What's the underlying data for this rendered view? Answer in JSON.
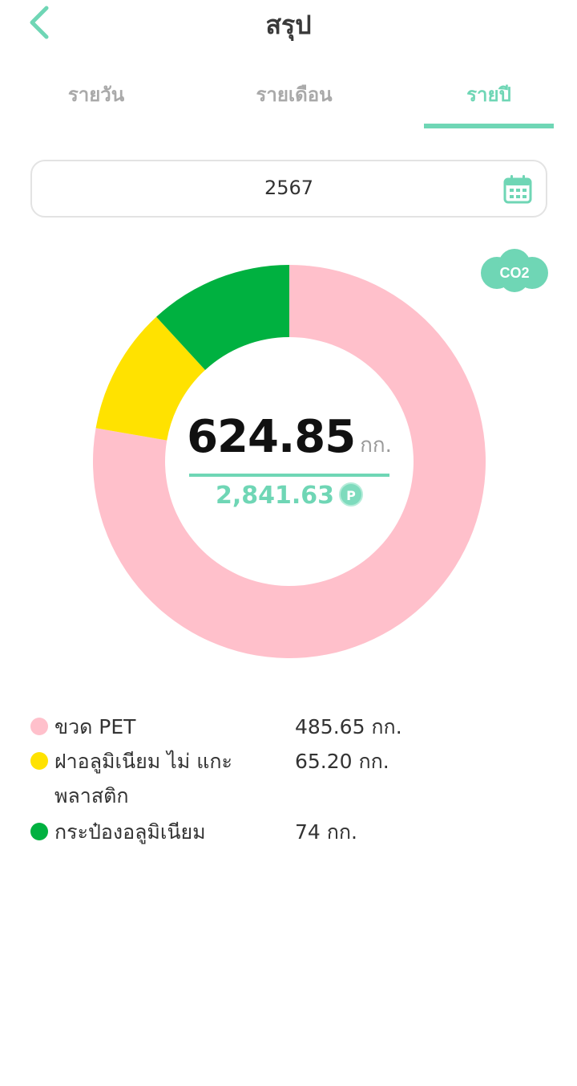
{
  "header": {
    "title": "สรุป",
    "back_icon": "chevron-left-icon"
  },
  "tabs": [
    {
      "label": "รายวัน",
      "active": false
    },
    {
      "label": "รายเดือน",
      "active": false
    },
    {
      "label": "รายปี",
      "active": true
    }
  ],
  "date_field": {
    "value": "2567",
    "icon": "calendar-icon"
  },
  "co2_button": {
    "label": "CO2",
    "icon": "co2-cloud-icon"
  },
  "summary": {
    "weight_value": "624.85",
    "weight_unit": "กก.",
    "points_value": "2,841.63",
    "points_badge": "P"
  },
  "colors": {
    "accent": "#6fd6b5",
    "pink": "#ffc0cb",
    "yellow": "#ffe200",
    "green": "#00b140"
  },
  "chart_data": {
    "type": "pie",
    "donut": true,
    "unit": "กก.",
    "slices": [
      {
        "label": "ขวด PET",
        "value": 485.65,
        "color": "#ffc0cb"
      },
      {
        "label": "ฝาอลูมิเนียม ไม่ แกะพลาสติก",
        "value": 65.2,
        "color": "#ffe200"
      },
      {
        "label": "กระป๋องอลูมิเนียม",
        "value": 74,
        "color": "#00b140"
      }
    ]
  },
  "legend": [
    {
      "name": "ขวด PET",
      "value": "485.65 กก.",
      "color": "#ffc0cb"
    },
    {
      "name": "ฝาอลูมิเนียม ไม่ แกะพลาสติก",
      "value": "65.20 กก.",
      "color": "#ffe200"
    },
    {
      "name": "กระป๋องอลูมิเนียม",
      "value": "74 กก.",
      "color": "#00b140"
    }
  ]
}
